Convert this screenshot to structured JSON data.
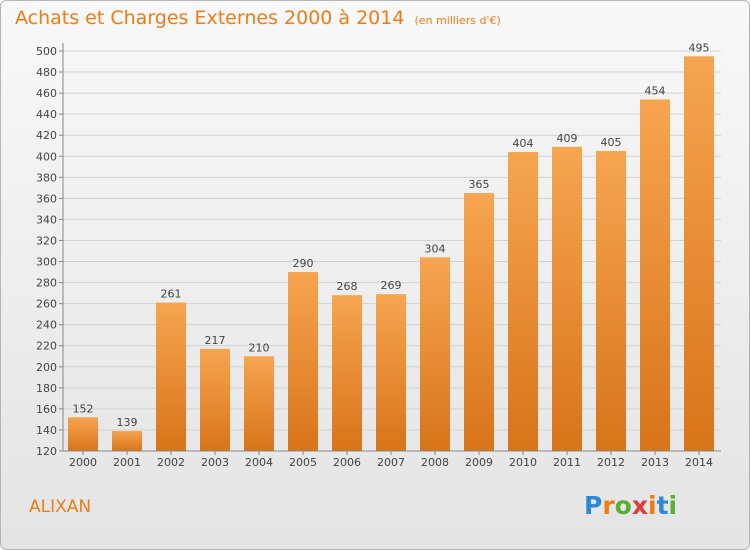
{
  "page": {
    "title": "Achats et Charges Externes 2000 à 2014",
    "unit": "(en milliers d'€)",
    "commune": "ALIXAN"
  },
  "logo": {
    "text": "Proxiti",
    "colors": [
      "#2a8ad8",
      "#f07b12",
      "#58b030",
      "#e23a3a",
      "#f07b12",
      "#2a8ad8",
      "#58b030"
    ]
  },
  "chart_data": {
    "type": "bar",
    "categories": [
      "2000",
      "2001",
      "2002",
      "2003",
      "2004",
      "2005",
      "2006",
      "2007",
      "2008",
      "2009",
      "2010",
      "2011",
      "2012",
      "2013",
      "2014"
    ],
    "values": [
      152,
      139,
      261,
      217,
      210,
      290,
      268,
      269,
      304,
      365,
      404,
      409,
      405,
      454,
      495
    ],
    "title": "Achats et Charges Externes 2000 à 2014",
    "ylim": [
      120,
      500
    ],
    "ytick_step": 20,
    "grid": true,
    "bar_color": "#f59a40",
    "bar_color_dark": "#d8741a"
  }
}
